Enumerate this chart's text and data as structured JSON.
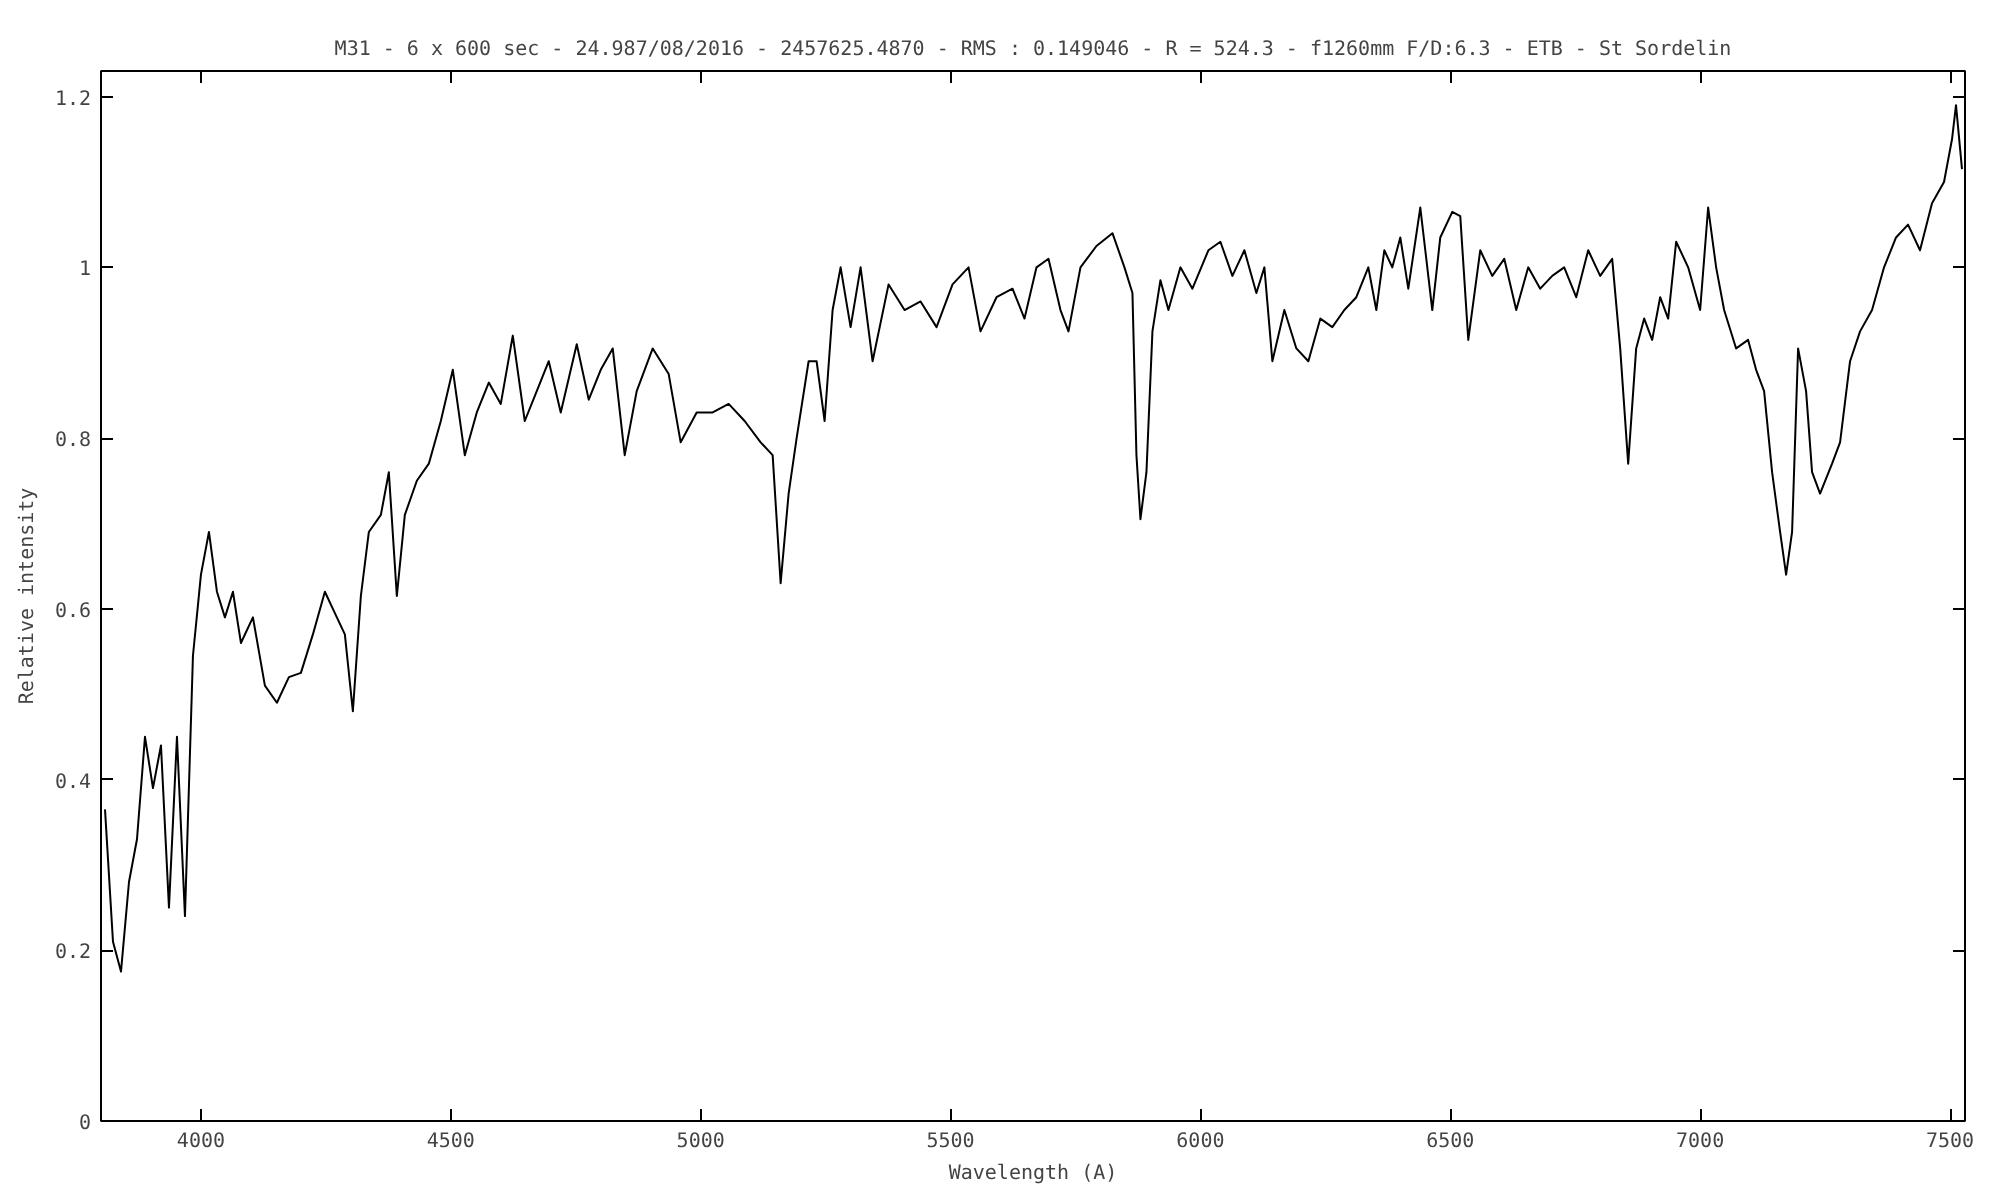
{
  "chart_data": {
    "type": "line",
    "title": "M31 - 6 x 600 sec - 24.987/08/2016 - 2457625.4870 - RMS : 0.149046 - R = 524.3 - f1260mm F/D:6.3 - ETB - St Sordelin",
    "xlabel": "Wavelength (A)",
    "ylabel": "Relative intensity",
    "x": [
      3808,
      3824,
      3840,
      3856,
      3872,
      3888,
      3904,
      3920,
      3936,
      3952,
      3968,
      3984,
      4000,
      4016,
      4032,
      4048,
      4064,
      4080,
      4104,
      4128,
      4152,
      4176,
      4200,
      4224,
      4248,
      4272,
      4288,
      4304,
      4320,
      4336,
      4360,
      4376,
      4392,
      4408,
      4432,
      4456,
      4480,
      4504,
      4528,
      4552,
      4576,
      4600,
      4624,
      4648,
      4672,
      4696,
      4720,
      4752,
      4776,
      4800,
      4824,
      4848,
      4872,
      4904,
      4936,
      4960,
      4992,
      5024,
      5056,
      5088,
      5120,
      5144,
      5160,
      5176,
      5192,
      5216,
      5232,
      5248,
      5264,
      5280,
      5300,
      5320,
      5344,
      5376,
      5408,
      5440,
      5472,
      5504,
      5536,
      5560,
      5592,
      5624,
      5648,
      5672,
      5696,
      5720,
      5736,
      5760,
      5792,
      5824,
      5848,
      5864,
      5872,
      5880,
      5892,
      5904,
      5920,
      5936,
      5960,
      5984,
      6016,
      6040,
      6064,
      6088,
      6112,
      6128,
      6144,
      6168,
      6192,
      6216,
      6240,
      6264,
      6288,
      6312,
      6336,
      6352,
      6368,
      6384,
      6400,
      6416,
      6440,
      6464,
      6480,
      6504,
      6520,
      6536,
      6560,
      6584,
      6608,
      6632,
      6656,
      6680,
      6704,
      6728,
      6752,
      6776,
      6800,
      6824,
      6840,
      6856,
      6872,
      6888,
      6904,
      6920,
      6936,
      6952,
      6976,
      7000,
      7016,
      7032,
      7048,
      7072,
      7096,
      7112,
      7128,
      7144,
      7160,
      7172,
      7184,
      7196,
      7212,
      7224,
      7240,
      7264,
      7280,
      7300,
      7320,
      7344,
      7368,
      7392,
      7416,
      7440,
      7464,
      7488,
      7504,
      7512,
      7524
    ],
    "series": [
      {
        "color": "#000000",
        "values": [
          0.365,
          0.21,
          0.175,
          0.28,
          0.33,
          0.45,
          0.39,
          0.44,
          0.25,
          0.45,
          0.24,
          0.545,
          0.64,
          0.69,
          0.62,
          0.59,
          0.62,
          0.56,
          0.59,
          0.51,
          0.49,
          0.52,
          0.525,
          0.57,
          0.62,
          0.59,
          0.57,
          0.48,
          0.615,
          0.69,
          0.71,
          0.76,
          0.615,
          0.71,
          0.75,
          0.77,
          0.82,
          0.88,
          0.78,
          0.83,
          0.865,
          0.84,
          0.92,
          0.82,
          0.855,
          0.89,
          0.83,
          0.91,
          0.845,
          0.88,
          0.905,
          0.78,
          0.855,
          0.905,
          0.875,
          0.795,
          0.83,
          0.83,
          0.84,
          0.82,
          0.795,
          0.78,
          0.63,
          0.735,
          0.8,
          0.89,
          0.89,
          0.82,
          0.95,
          1.0,
          0.93,
          1.0,
          0.89,
          0.98,
          0.95,
          0.96,
          0.93,
          0.98,
          1.0,
          0.925,
          0.965,
          0.975,
          0.94,
          1.0,
          1.01,
          0.95,
          0.925,
          1.0,
          1.025,
          1.04,
          1.0,
          0.97,
          0.78,
          0.705,
          0.76,
          0.925,
          0.985,
          0.95,
          1.0,
          0.975,
          1.02,
          1.03,
          0.99,
          1.02,
          0.97,
          1.0,
          0.89,
          0.95,
          0.905,
          0.89,
          0.94,
          0.93,
          0.95,
          0.965,
          1.0,
          0.95,
          1.02,
          1.0,
          1.035,
          0.975,
          1.07,
          0.95,
          1.035,
          1.065,
          1.06,
          0.915,
          1.02,
          0.99,
          1.01,
          0.95,
          1.0,
          0.975,
          0.99,
          1.0,
          0.965,
          1.02,
          0.99,
          1.01,
          0.905,
          0.77,
          0.905,
          0.94,
          0.915,
          0.965,
          0.94,
          1.03,
          1.0,
          0.95,
          1.07,
          1.0,
          0.95,
          0.905,
          0.915,
          0.88,
          0.855,
          0.76,
          0.69,
          0.64,
          0.69,
          0.905,
          0.855,
          0.76,
          0.735,
          0.77,
          0.795,
          0.89,
          0.925,
          0.95,
          1.0,
          1.035,
          1.05,
          1.02,
          1.075,
          1.1,
          1.15,
          1.19,
          1.115
        ]
      }
    ],
    "xlim": [
      3800,
      7530
    ],
    "ylim": [
      0,
      1.23
    ],
    "xticks": [
      4000,
      4500,
      5000,
      5500,
      6000,
      6500,
      7000,
      7500
    ],
    "yticks": [
      0,
      0.2,
      0.4,
      0.6,
      0.8,
      1,
      1.2
    ],
    "grid": false,
    "marker": "none",
    "line_style": "solid"
  }
}
